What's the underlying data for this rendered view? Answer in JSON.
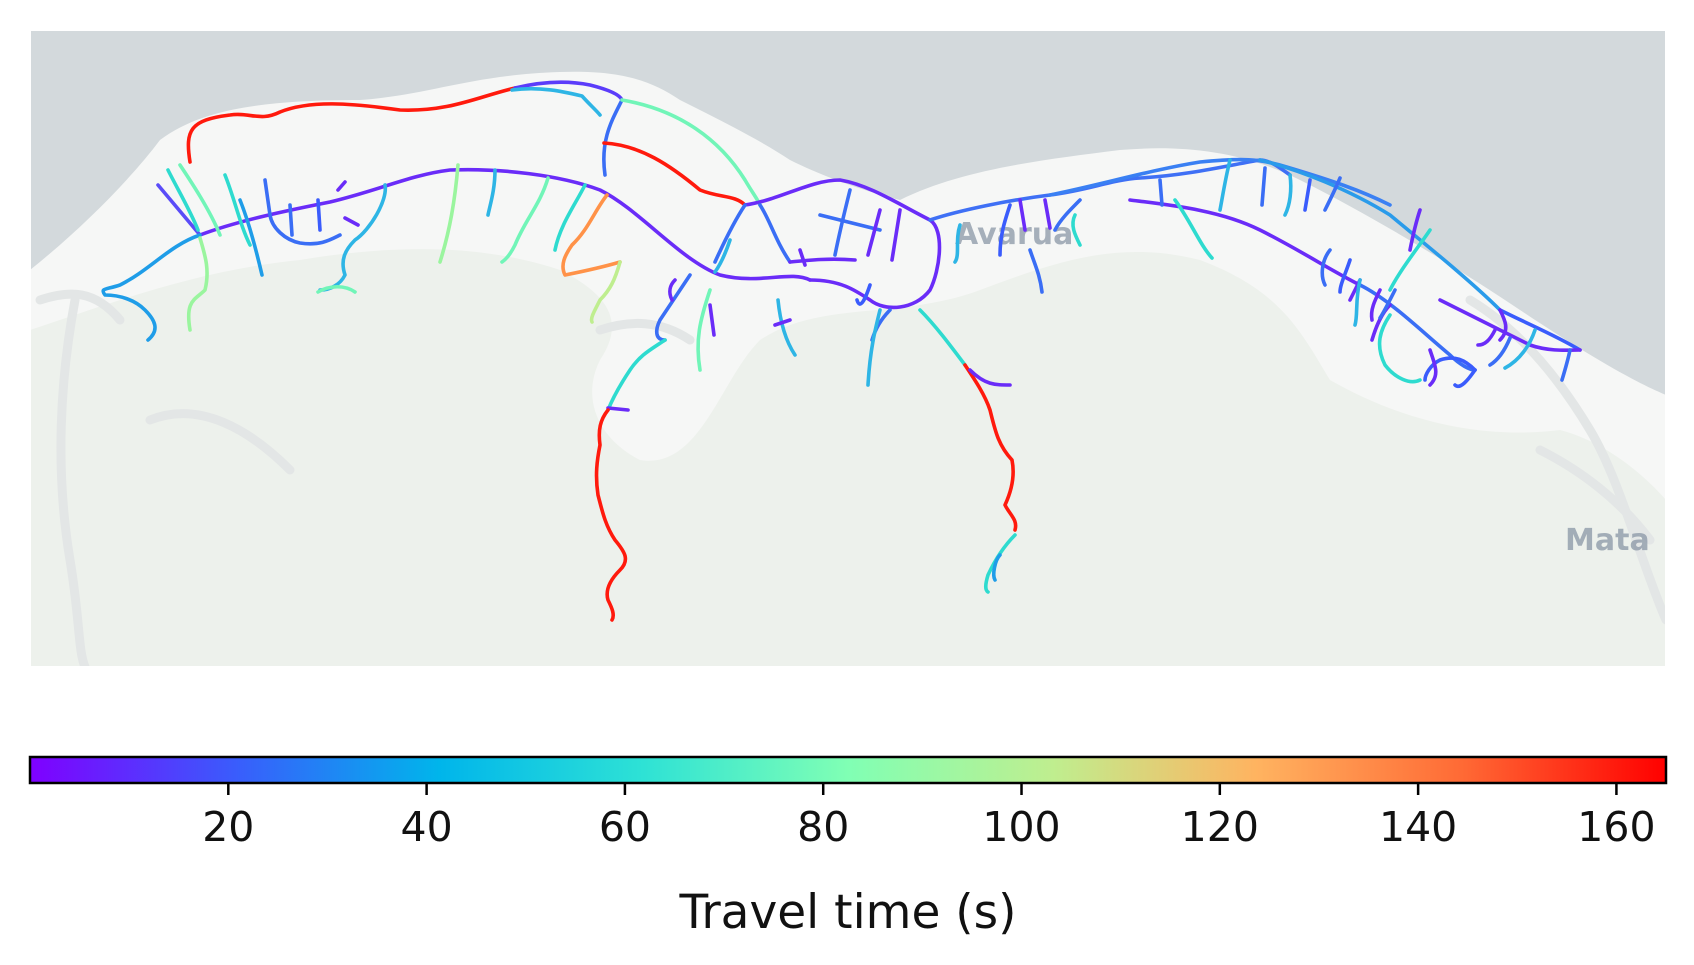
{
  "map": {
    "place_labels": [
      "Avarua",
      "Mata"
    ],
    "colors": {
      "ocean": "#d3d9dc",
      "land": "#f6f7f6",
      "vegetation": "#edf1ec",
      "minor_road": "#e3e6e6",
      "label": "#8a97a6"
    },
    "road_color_scale": "rainbow (purple-blue-cyan-green-yellow-orange-red)",
    "road_segments_note": "segments colored by travel time; long uphill roads red (~160 s), main coastal road purple/blue (~5-30 s)"
  },
  "colorbar": {
    "label": "Travel time (s)",
    "min": 0,
    "max": 165,
    "ticks": [
      "20",
      "40",
      "60",
      "80",
      "100",
      "120",
      "140",
      "160"
    ],
    "tick_values": [
      20,
      40,
      60,
      80,
      100,
      120,
      140,
      160
    ],
    "colormap": "rainbow",
    "colormap_stops": [
      "#7f00ff",
      "#3a5cfc",
      "#00b5eb",
      "#2ee2d5",
      "#80ffb4",
      "#bfee8f",
      "#ffb360",
      "#ff6a35",
      "#ff0000"
    ]
  }
}
